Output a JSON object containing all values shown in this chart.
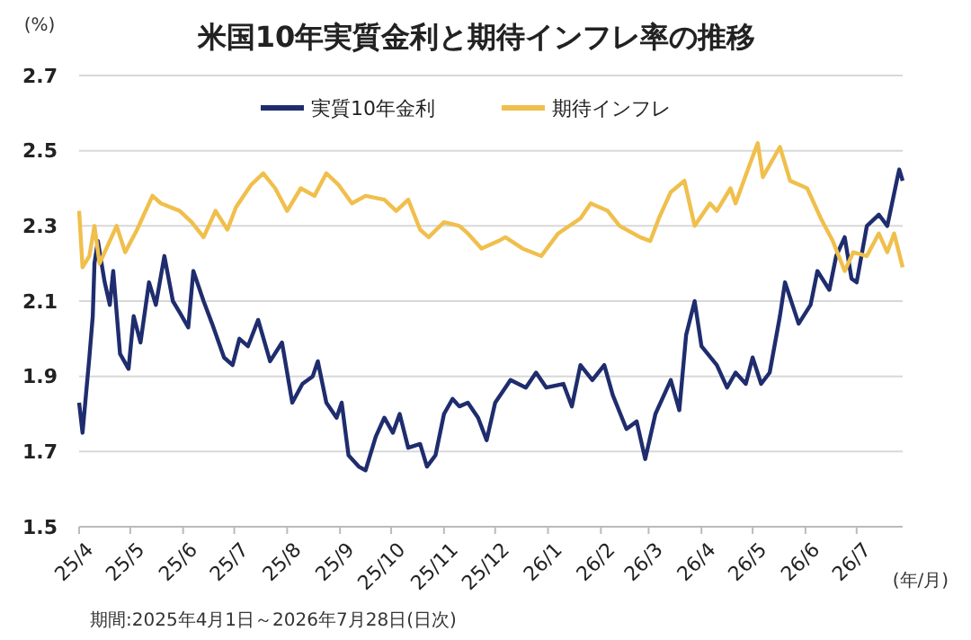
{
  "chart_data": {
    "type": "line",
    "title": "米国10年実質金利と期待インフレ率の推移",
    "ylabel": "(%)",
    "xlabel": "(年/月)",
    "annotations": [
      "期間:2025年4月1日～2026年7月28日(日次)"
    ],
    "xlim": [
      "2025-04-01",
      "2026-07-28"
    ],
    "xticks": [
      {
        "value": "2025-04-01",
        "label": "25/4"
      },
      {
        "value": "2025-05-01",
        "label": "25/5"
      },
      {
        "value": "2025-06-01",
        "label": "25/6"
      },
      {
        "value": "2025-07-01",
        "label": "25/7"
      },
      {
        "value": "2025-08-01",
        "label": "25/8"
      },
      {
        "value": "2025-09-01",
        "label": "25/9"
      },
      {
        "value": "2025-10-01",
        "label": "25/10"
      },
      {
        "value": "2025-11-01",
        "label": "25/11"
      },
      {
        "value": "2025-12-01",
        "label": "25/12"
      },
      {
        "value": "2026-01-01",
        "label": "26/1"
      },
      {
        "value": "2026-02-01",
        "label": "26/2"
      },
      {
        "value": "2026-03-01",
        "label": "26/3"
      },
      {
        "value": "2026-04-01",
        "label": "26/4"
      },
      {
        "value": "2026-05-01",
        "label": "26/5"
      },
      {
        "value": "2026-06-01",
        "label": "26/6"
      },
      {
        "value": "2026-07-01",
        "label": "26/7"
      }
    ],
    "ylim": [
      1.5,
      2.7
    ],
    "yticks": [
      1.5,
      1.7,
      1.9,
      2.1,
      2.3,
      2.5,
      2.7
    ],
    "grid": "y",
    "legend": "top",
    "marker": "none",
    "line_style": "solid",
    "series": [
      {
        "name": "実質10年金利",
        "color": "#1f2d6e",
        "x": [
          "2025-04-01",
          "2025-04-03",
          "2025-04-07",
          "2025-04-09",
          "2025-04-10",
          "2025-04-12",
          "2025-04-16",
          "2025-04-19",
          "2025-04-21",
          "2025-04-25",
          "2025-04-30",
          "2025-05-03",
          "2025-05-07",
          "2025-05-12",
          "2025-05-16",
          "2025-05-21",
          "2025-05-26",
          "2025-05-30",
          "2025-06-04",
          "2025-06-07",
          "2025-06-13",
          "2025-06-18",
          "2025-06-25",
          "2025-06-30",
          "2025-07-04",
          "2025-07-09",
          "2025-07-15",
          "2025-07-22",
          "2025-07-29",
          "2025-08-04",
          "2025-08-10",
          "2025-08-16",
          "2025-08-19",
          "2025-08-24",
          "2025-08-30",
          "2025-09-02",
          "2025-09-06",
          "2025-09-12",
          "2025-09-16",
          "2025-09-22",
          "2025-09-27",
          "2025-10-02",
          "2025-10-06",
          "2025-10-11",
          "2025-10-18",
          "2025-10-22",
          "2025-10-27",
          "2025-11-01",
          "2025-11-06",
          "2025-11-10",
          "2025-11-15",
          "2025-11-21",
          "2025-11-26",
          "2025-12-01",
          "2025-12-07",
          "2025-12-10",
          "2025-12-19",
          "2025-12-25",
          "2025-12-31",
          "2026-01-10",
          "2026-01-15",
          "2026-01-20",
          "2026-01-27",
          "2026-02-03",
          "2026-02-08",
          "2026-02-16",
          "2026-02-22",
          "2026-02-27",
          "2026-03-05",
          "2026-03-14",
          "2026-03-19",
          "2026-03-23",
          "2026-03-28",
          "2026-04-01",
          "2026-04-10",
          "2026-04-16",
          "2026-04-21",
          "2026-04-27",
          "2026-05-01",
          "2026-05-06",
          "2026-05-11",
          "2026-05-17",
          "2026-05-20",
          "2026-05-28",
          "2026-06-04",
          "2026-06-08",
          "2026-06-15",
          "2026-06-19",
          "2026-06-24",
          "2026-06-28",
          "2026-07-01",
          "2026-07-07",
          "2026-07-14",
          "2026-07-19",
          "2026-07-25",
          "2026-07-26",
          "2026-07-28"
        ],
        "values": [
          1.83,
          1.75,
          1.95,
          2.06,
          2.2,
          2.26,
          2.15,
          2.09,
          2.18,
          1.96,
          1.92,
          2.06,
          1.99,
          2.15,
          2.09,
          2.22,
          2.1,
          2.07,
          2.03,
          2.18,
          2.1,
          2.04,
          1.95,
          1.93,
          2.0,
          1.98,
          2.05,
          1.94,
          1.99,
          1.83,
          1.88,
          1.9,
          1.94,
          1.83,
          1.79,
          1.83,
          1.69,
          1.66,
          1.65,
          1.74,
          1.79,
          1.75,
          1.8,
          1.71,
          1.72,
          1.66,
          1.69,
          1.8,
          1.84,
          1.82,
          1.83,
          1.79,
          1.73,
          1.83,
          1.87,
          1.89,
          1.87,
          1.91,
          1.87,
          1.88,
          1.82,
          1.93,
          1.89,
          1.93,
          1.85,
          1.76,
          1.78,
          1.68,
          1.8,
          1.89,
          1.81,
          2.01,
          2.1,
          1.98,
          1.93,
          1.87,
          1.91,
          1.88,
          1.95,
          1.88,
          1.91,
          2.06,
          2.15,
          2.04,
          2.09,
          2.18,
          2.13,
          2.22,
          2.27,
          2.16,
          2.15,
          2.3,
          2.33,
          2.3,
          2.43,
          2.45,
          2.42
        ]
      },
      {
        "name": "期待インフレ",
        "color": "#f0bf4c",
        "x": [
          "2025-04-01",
          "2025-04-03",
          "2025-04-07",
          "2025-04-10",
          "2025-04-13",
          "2025-04-17",
          "2025-04-23",
          "2025-04-28",
          "2025-05-05",
          "2025-05-14",
          "2025-05-19",
          "2025-05-30",
          "2025-06-06",
          "2025-06-13",
          "2025-06-20",
          "2025-06-27",
          "2025-07-02",
          "2025-07-11",
          "2025-07-18",
          "2025-07-25",
          "2025-08-01",
          "2025-08-09",
          "2025-08-17",
          "2025-08-24",
          "2025-08-31",
          "2025-09-08",
          "2025-09-16",
          "2025-09-27",
          "2025-10-04",
          "2025-10-11",
          "2025-10-18",
          "2025-10-23",
          "2025-11-01",
          "2025-11-10",
          "2025-11-15",
          "2025-11-23",
          "2025-12-03",
          "2025-12-07",
          "2025-12-17",
          "2025-12-28",
          "2026-01-07",
          "2026-01-20",
          "2026-01-26",
          "2026-02-05",
          "2026-02-12",
          "2026-02-24",
          "2026-03-02",
          "2026-03-07",
          "2026-03-14",
          "2026-03-22",
          "2026-03-28",
          "2026-04-06",
          "2026-04-10",
          "2026-04-18",
          "2026-04-21",
          "2026-04-29",
          "2026-05-04",
          "2026-05-07",
          "2026-05-17",
          "2026-05-23",
          "2026-06-02",
          "2026-06-10",
          "2026-06-17",
          "2026-06-24",
          "2026-06-29",
          "2026-07-07",
          "2026-07-14",
          "2026-07-19",
          "2026-07-23",
          "2026-07-28"
        ],
        "values": [
          2.34,
          2.19,
          2.22,
          2.3,
          2.2,
          2.24,
          2.3,
          2.23,
          2.29,
          2.38,
          2.36,
          2.34,
          2.31,
          2.27,
          2.34,
          2.29,
          2.35,
          2.41,
          2.44,
          2.4,
          2.34,
          2.4,
          2.38,
          2.44,
          2.41,
          2.36,
          2.38,
          2.37,
          2.34,
          2.37,
          2.29,
          2.27,
          2.31,
          2.3,
          2.28,
          2.24,
          2.26,
          2.27,
          2.24,
          2.22,
          2.28,
          2.32,
          2.36,
          2.34,
          2.3,
          2.27,
          2.26,
          2.32,
          2.39,
          2.42,
          2.3,
          2.36,
          2.34,
          2.4,
          2.36,
          2.46,
          2.52,
          2.43,
          2.51,
          2.42,
          2.4,
          2.32,
          2.26,
          2.18,
          2.23,
          2.22,
          2.28,
          2.23,
          2.28,
          2.19
        ]
      }
    ]
  }
}
